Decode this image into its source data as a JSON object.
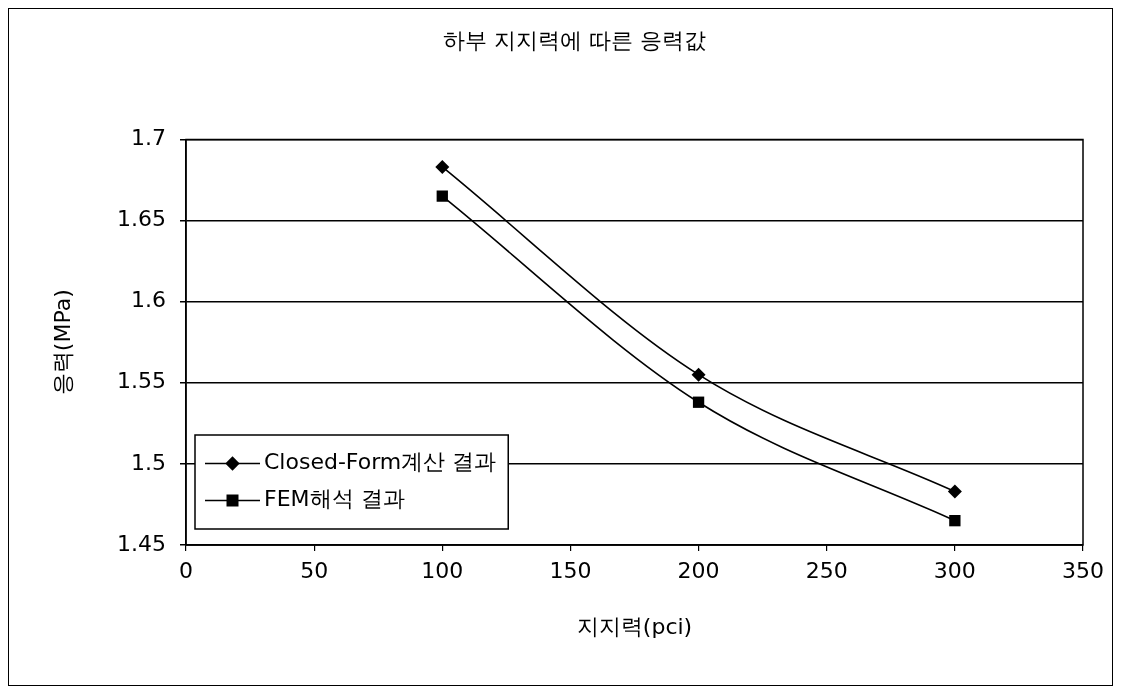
{
  "chart_data": {
    "type": "line",
    "title": "하부 지지력에 따른 응력값",
    "xlabel": "지지력(pci)",
    "ylabel": "응력(MPa)",
    "x": [
      100,
      200,
      300
    ],
    "series": [
      {
        "name": "Closed-Form계산 결과",
        "color": "#000000",
        "values": [
          1.683,
          1.555,
          1.483
        ],
        "marker": "diamond"
      },
      {
        "name": "FEM해석 결과",
        "color": "#000000",
        "values": [
          1.665,
          1.538,
          1.465
        ],
        "marker": "square"
      }
    ],
    "xlim": [
      0,
      350
    ],
    "xticks": [
      0,
      50,
      100,
      150,
      200,
      250,
      300,
      350
    ],
    "ylim": [
      1.45,
      1.7
    ],
    "yticks": [
      1.45,
      1.5,
      1.55,
      1.6,
      1.65,
      1.7
    ],
    "grid": "y",
    "legend": "bottom left",
    "line_style": "solid"
  }
}
